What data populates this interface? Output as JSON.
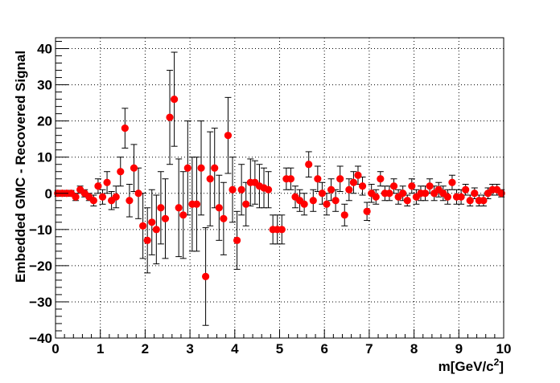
{
  "chart_data": {
    "type": "scatter",
    "title": "",
    "xlabel": "m[GeV/c^2]",
    "xlabel_main": "m[GeV/c",
    "xlabel_sup": "2",
    "xlabel_tail": "]",
    "ylabel": "Embedded GMC - Recovered Signal",
    "xlim": [
      0,
      10
    ],
    "ylim": [
      -40,
      43
    ],
    "xticks": [
      "0",
      "1",
      "2",
      "3",
      "4",
      "5",
      "6",
      "7",
      "8",
      "9",
      "10"
    ],
    "yticks": [
      "−40",
      "−30",
      "−20",
      "−10",
      "0",
      "10",
      "20",
      "30",
      "40"
    ],
    "ytick_values": [
      -40,
      -30,
      -20,
      -10,
      0,
      10,
      20,
      30,
      40
    ],
    "grid": true,
    "marker_color": "#ff0000",
    "errorbar_color": "#000000",
    "points": [
      {
        "x": 0.05,
        "y": 0,
        "err": 0.8
      },
      {
        "x": 0.15,
        "y": 0,
        "err": 0.8
      },
      {
        "x": 0.25,
        "y": 0,
        "err": 0.8
      },
      {
        "x": 0.35,
        "y": 0,
        "err": 0.8
      },
      {
        "x": 0.45,
        "y": -1,
        "err": 1.0
      },
      {
        "x": 0.55,
        "y": 1,
        "err": 1.0
      },
      {
        "x": 0.65,
        "y": 0,
        "err": 1.0
      },
      {
        "x": 0.75,
        "y": -1,
        "err": 1.0
      },
      {
        "x": 0.85,
        "y": -2,
        "err": 1.5
      },
      {
        "x": 0.95,
        "y": 2,
        "err": 2.0
      },
      {
        "x": 1.05,
        "y": -1,
        "err": 2.0
      },
      {
        "x": 1.15,
        "y": 3,
        "err": 3.0
      },
      {
        "x": 1.25,
        "y": -2,
        "err": 2.5
      },
      {
        "x": 1.35,
        "y": -1,
        "err": 3.0
      },
      {
        "x": 1.45,
        "y": 6,
        "err": 4.0
      },
      {
        "x": 1.55,
        "y": 18,
        "err": 5.5
      },
      {
        "x": 1.65,
        "y": -2,
        "err": 4.5
      },
      {
        "x": 1.75,
        "y": 7,
        "err": 6.5
      },
      {
        "x": 1.85,
        "y": 0,
        "err": 7.0
      },
      {
        "x": 1.95,
        "y": -9,
        "err": 9.0
      },
      {
        "x": 2.05,
        "y": -13,
        "err": 9.0
      },
      {
        "x": 2.15,
        "y": -8,
        "err": 9.0
      },
      {
        "x": 2.25,
        "y": -10,
        "err": 9.5
      },
      {
        "x": 2.35,
        "y": -4,
        "err": 10.0
      },
      {
        "x": 2.45,
        "y": -7,
        "err": 11.0
      },
      {
        "x": 2.55,
        "y": 21,
        "err": 13.0
      },
      {
        "x": 2.65,
        "y": 26,
        "err": 13.0
      },
      {
        "x": 2.75,
        "y": -4,
        "err": 13.5
      },
      {
        "x": 2.85,
        "y": -6,
        "err": 12.0
      },
      {
        "x": 2.95,
        "y": 7,
        "err": 13.0
      },
      {
        "x": 3.05,
        "y": -3,
        "err": 13.0
      },
      {
        "x": 3.15,
        "y": -3,
        "err": 13.0
      },
      {
        "x": 3.25,
        "y": 7,
        "err": 13.0
      },
      {
        "x": 3.35,
        "y": -23,
        "err": 13.5
      },
      {
        "x": 3.45,
        "y": 4,
        "err": 13.0
      },
      {
        "x": 3.55,
        "y": 7,
        "err": 11.0
      },
      {
        "x": 3.65,
        "y": -4,
        "err": 9.0
      },
      {
        "x": 3.75,
        "y": -7,
        "err": 10.0
      },
      {
        "x": 3.85,
        "y": 16,
        "err": 10.5
      },
      {
        "x": 3.95,
        "y": 1,
        "err": 9.0
      },
      {
        "x": 4.05,
        "y": -13,
        "err": 8.0
      },
      {
        "x": 4.15,
        "y": 1,
        "err": 7.0
      },
      {
        "x": 4.25,
        "y": -3,
        "err": 6.0
      },
      {
        "x": 4.35,
        "y": 3,
        "err": 6.5
      },
      {
        "x": 4.45,
        "y": 3,
        "err": 6.0
      },
      {
        "x": 4.55,
        "y": 2,
        "err": 6.0
      },
      {
        "x": 4.65,
        "y": 1.5,
        "err": 5.5
      },
      {
        "x": 4.75,
        "y": 1,
        "err": 5.0
      },
      {
        "x": 4.85,
        "y": -10,
        "err": 4.0
      },
      {
        "x": 4.95,
        "y": -10,
        "err": 4.0
      },
      {
        "x": 5.05,
        "y": -10,
        "err": 4.0
      },
      {
        "x": 5.15,
        "y": 4,
        "err": 3.0
      },
      {
        "x": 5.25,
        "y": 4,
        "err": 3.0
      },
      {
        "x": 5.35,
        "y": -1,
        "err": 3.0
      },
      {
        "x": 5.45,
        "y": -2,
        "err": 3.0
      },
      {
        "x": 5.55,
        "y": -3,
        "err": 3.0
      },
      {
        "x": 5.65,
        "y": 8,
        "err": 3.5
      },
      {
        "x": 5.75,
        "y": -2,
        "err": 3.0
      },
      {
        "x": 5.85,
        "y": 4,
        "err": 3.5
      },
      {
        "x": 5.95,
        "y": 0,
        "err": 3.0
      },
      {
        "x": 6.05,
        "y": -3,
        "err": 3.0
      },
      {
        "x": 6.15,
        "y": 1,
        "err": 3.0
      },
      {
        "x": 6.25,
        "y": -2,
        "err": 3.0
      },
      {
        "x": 6.35,
        "y": 4,
        "err": 3.5
      },
      {
        "x": 6.45,
        "y": -6,
        "err": 3.0
      },
      {
        "x": 6.55,
        "y": 1,
        "err": 3.0
      },
      {
        "x": 6.65,
        "y": 3,
        "err": 3.0
      },
      {
        "x": 6.75,
        "y": 5,
        "err": 2.5
      },
      {
        "x": 6.85,
        "y": 2,
        "err": 2.5
      },
      {
        "x": 6.95,
        "y": -5,
        "err": 2.5
      },
      {
        "x": 7.05,
        "y": 0,
        "err": 2.5
      },
      {
        "x": 7.15,
        "y": -1,
        "err": 2.0
      },
      {
        "x": 7.25,
        "y": 4,
        "err": 2.0
      },
      {
        "x": 7.35,
        "y": 0,
        "err": 2.0
      },
      {
        "x": 7.45,
        "y": 0,
        "err": 2.0
      },
      {
        "x": 7.55,
        "y": 2,
        "err": 2.0
      },
      {
        "x": 7.65,
        "y": -1,
        "err": 2.0
      },
      {
        "x": 7.75,
        "y": 0,
        "err": 2.0
      },
      {
        "x": 7.85,
        "y": -2,
        "err": 1.5
      },
      {
        "x": 7.95,
        "y": 2,
        "err": 2.0
      },
      {
        "x": 8.05,
        "y": -1,
        "err": 2.0
      },
      {
        "x": 8.15,
        "y": 0,
        "err": 2.0
      },
      {
        "x": 8.25,
        "y": 0,
        "err": 2.0
      },
      {
        "x": 8.35,
        "y": 2,
        "err": 2.0
      },
      {
        "x": 8.45,
        "y": 0,
        "err": 2.0
      },
      {
        "x": 8.55,
        "y": 1,
        "err": 2.0
      },
      {
        "x": 8.65,
        "y": 0,
        "err": 2.0
      },
      {
        "x": 8.75,
        "y": -1,
        "err": 2.0
      },
      {
        "x": 8.85,
        "y": 3,
        "err": 2.0
      },
      {
        "x": 8.95,
        "y": -1,
        "err": 2.0
      },
      {
        "x": 9.05,
        "y": -1,
        "err": 2.0
      },
      {
        "x": 9.15,
        "y": 1,
        "err": 1.5
      },
      {
        "x": 9.25,
        "y": -2,
        "err": 1.5
      },
      {
        "x": 9.35,
        "y": 0,
        "err": 1.5
      },
      {
        "x": 9.45,
        "y": -2,
        "err": 1.5
      },
      {
        "x": 9.55,
        "y": -2,
        "err": 1.5
      },
      {
        "x": 9.65,
        "y": 0,
        "err": 1.5
      },
      {
        "x": 9.75,
        "y": 1,
        "err": 1.5
      },
      {
        "x": 9.85,
        "y": 1,
        "err": 1.5
      },
      {
        "x": 9.95,
        "y": 0,
        "err": 1.0
      }
    ]
  }
}
